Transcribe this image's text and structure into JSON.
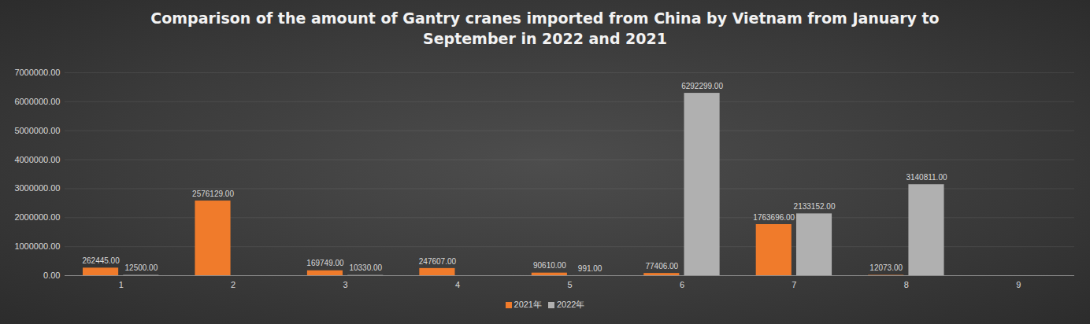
{
  "chart_data": {
    "type": "bar",
    "title": "Comparison of the amount of Gantry cranes imported from China by Vietnam from January to September in 2022 and 2021",
    "categories": [
      "1",
      "2",
      "3",
      "4",
      "5",
      "6",
      "7",
      "8",
      "9"
    ],
    "series": [
      {
        "name": "2021年",
        "color": "#f07b2b",
        "values": [
          262445,
          2576129,
          169749,
          247607,
          90610,
          77406,
          1763696,
          12073,
          null
        ],
        "value_labels": [
          "262445.00",
          "2576129.00",
          "169749.00",
          "247607.00",
          "90610.00",
          "77406.00",
          "1763696.00",
          "12073.00",
          null
        ]
      },
      {
        "name": "2022年",
        "color": "#b0b0b0",
        "values": [
          12500,
          null,
          10330,
          null,
          991,
          6292299,
          2133152,
          3140811,
          null
        ],
        "value_labels": [
          "12500.00",
          null,
          "10330.00",
          null,
          "991.00",
          "6292299.00",
          "2133152.00",
          "3140811.00",
          null
        ]
      }
    ],
    "ylim": [
      0,
      7000000
    ],
    "yticks": [
      {
        "value": 0,
        "label": "0.00"
      },
      {
        "value": 1000000,
        "label": "1000000.00"
      },
      {
        "value": 2000000,
        "label": "2000000.00"
      },
      {
        "value": 3000000,
        "label": "3000000.00"
      },
      {
        "value": 4000000,
        "label": "4000000.00"
      },
      {
        "value": 5000000,
        "label": "5000000.00"
      },
      {
        "value": 6000000,
        "label": "6000000.00"
      },
      {
        "value": 7000000,
        "label": "7000000.00"
      }
    ],
    "grid": true,
    "data_labels": true,
    "legend": "bottom"
  }
}
